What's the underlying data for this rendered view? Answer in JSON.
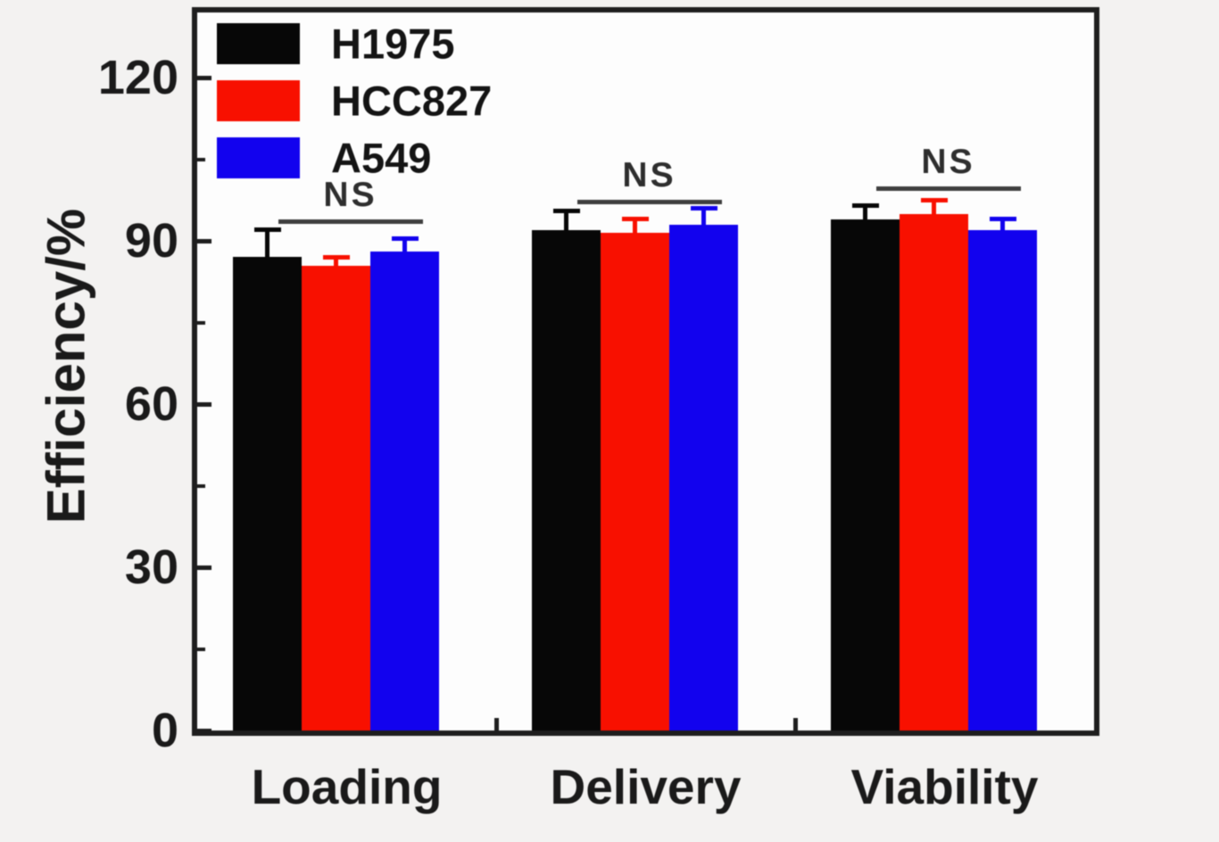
{
  "figure": {
    "background_color": "#f3f2f1",
    "plot_background_color": "#fdfdfd",
    "frame_color": "#1e1e1e"
  },
  "chart_data": {
    "type": "bar",
    "title": "",
    "xlabel": "",
    "ylabel": "Efficiency/%",
    "categories": [
      "Loading",
      "Delivery",
      "Viability"
    ],
    "series": [
      {
        "name": "H1975",
        "color": "#070707",
        "values": [
          87,
          92,
          94
        ],
        "errors": [
          5,
          3.5,
          2.5
        ]
      },
      {
        "name": "HCC827",
        "color": "#f81000",
        "values": [
          85.5,
          91.5,
          95
        ],
        "errors": [
          1.5,
          2.5,
          2.5
        ]
      },
      {
        "name": "A549",
        "color": "#1202ee",
        "values": [
          88,
          93,
          92
        ],
        "errors": [
          2.5,
          3,
          2
        ]
      }
    ],
    "ylim": [
      0,
      132
    ],
    "yticks": [
      0,
      30,
      60,
      90,
      120
    ],
    "yticks_minor": [
      15,
      45,
      75,
      105
    ],
    "grid": false,
    "legend_position": "top-left",
    "annotations": [
      {
        "label": "NS",
        "group": 0,
        "line_y": 94
      },
      {
        "label": "NS",
        "group": 1,
        "line_y": 97.5
      },
      {
        "label": "NS",
        "group": 2,
        "line_y": 100
      }
    ],
    "annotation_line_color": "#3f3f3f",
    "annotation_text_color": "#2e2e2e"
  }
}
